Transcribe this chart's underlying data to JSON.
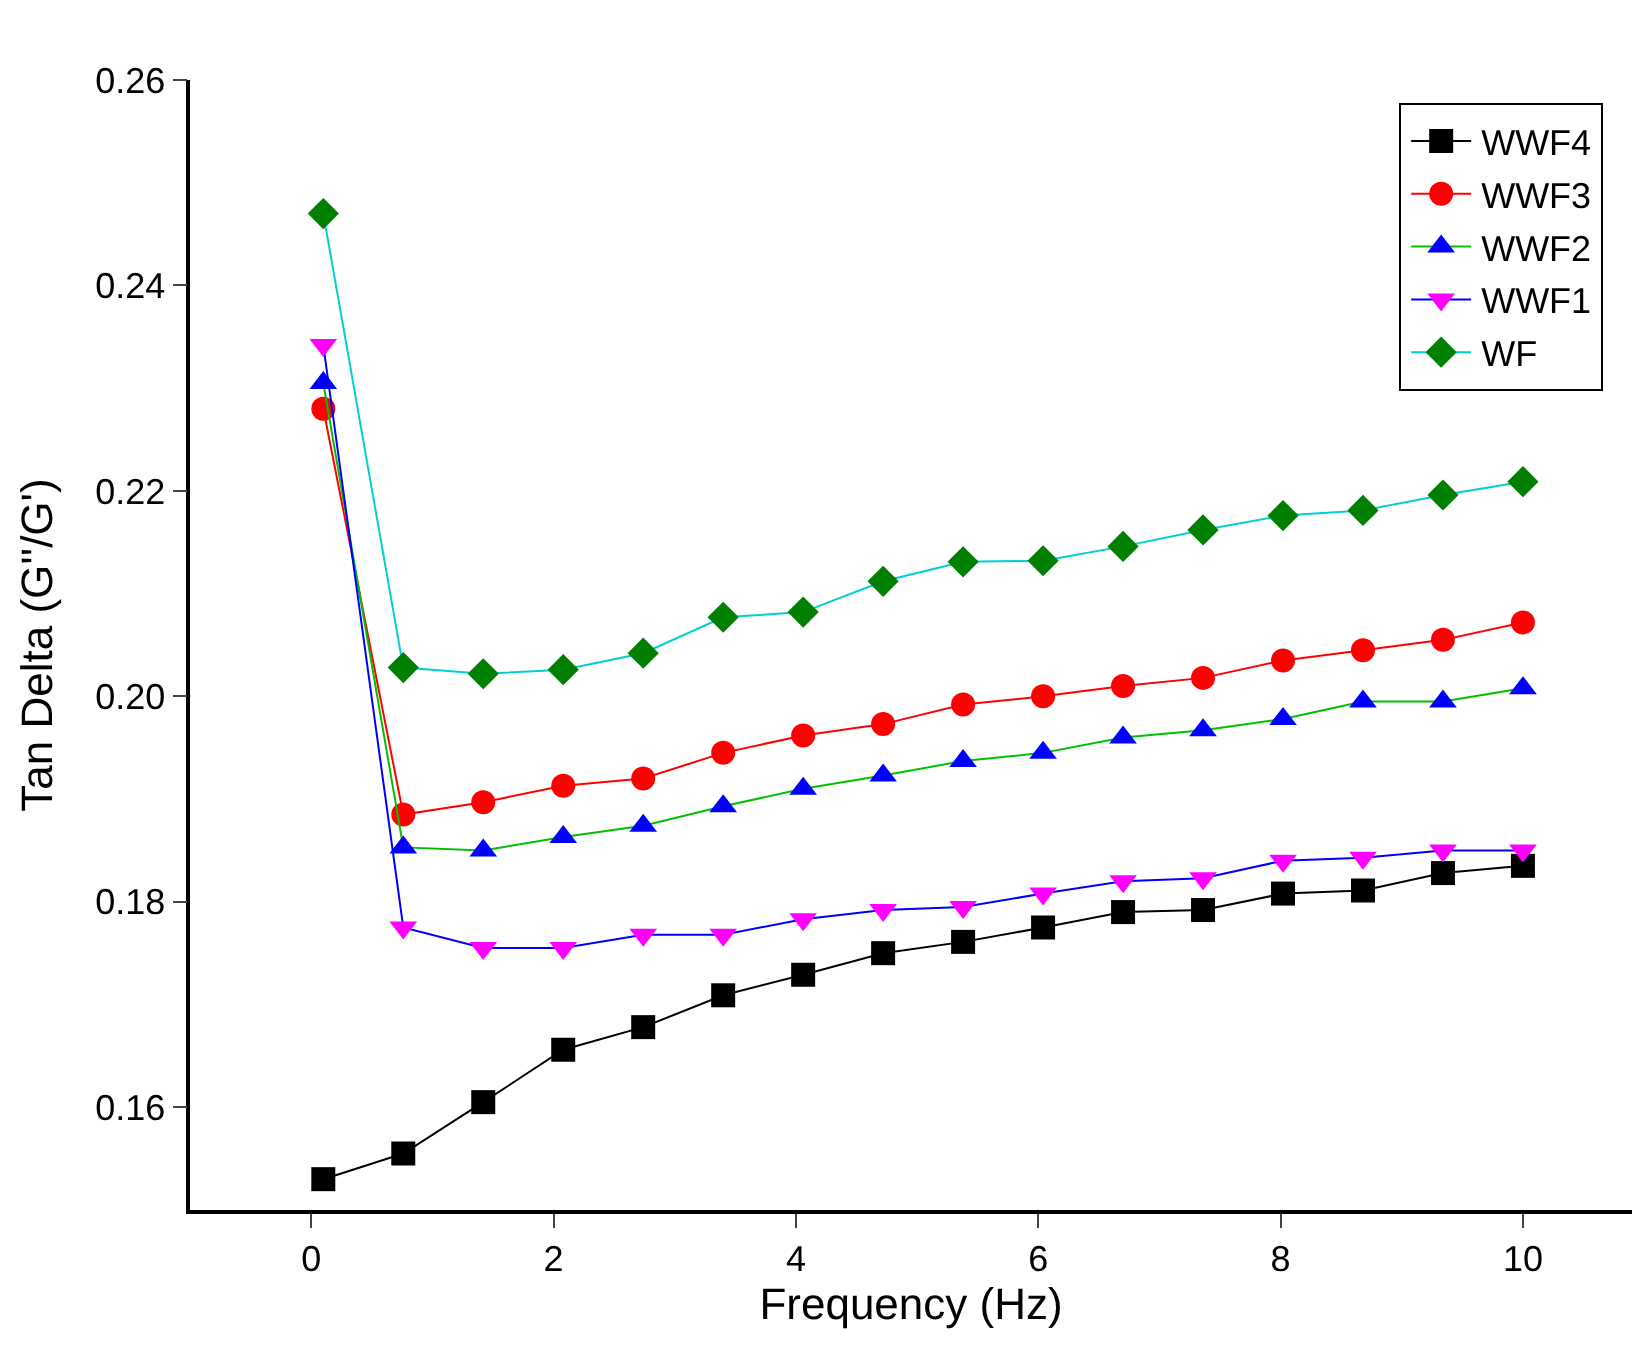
{
  "chart_data": {
    "type": "line",
    "xlabel": "Frequency (Hz)",
    "ylabel": "Tan Delta (G''/G')",
    "x": [
      0.1,
      0.76,
      1.42,
      2.08,
      2.74,
      3.4,
      4.06,
      4.72,
      5.38,
      6.04,
      6.7,
      7.36,
      8.02,
      8.68,
      9.34,
      10
    ],
    "xlim": [
      -1,
      10.9
    ],
    "xticks": [
      0,
      2,
      4,
      6,
      8,
      10
    ],
    "ylim": [
      0.15,
      0.26
    ],
    "yticks": [
      0.16,
      0.18,
      {
        "value": 0.2,
        "label": "0.20"
      },
      0.22,
      0.24,
      0.26
    ],
    "legend": "top right",
    "line_style": "solid",
    "series": [
      {
        "name": "WWF4",
        "color": "#000000",
        "marker": "square",
        "values": [
          0.153,
          0.1555,
          0.1605,
          0.1656,
          0.1678,
          0.1709,
          0.1729,
          0.175,
          0.1761,
          0.1775,
          0.179,
          0.1792,
          0.1808,
          0.1811,
          0.1828,
          0.1835
        ]
      },
      {
        "name": "WWF3",
        "color": "#ff0000",
        "marker": "circle",
        "values": [
          0.228,
          0.1885,
          0.1897,
          0.1913,
          0.192,
          0.1945,
          0.1962,
          0.1973,
          0.1992,
          0.2,
          0.201,
          0.2018,
          0.2035,
          0.2045,
          0.2055,
          0.2072
        ]
      },
      {
        "name": "WWF2",
        "color": "#0000ff",
        "marker": "triangle",
        "values": [
          0.2305,
          0.1853,
          0.185,
          0.1863,
          0.1874,
          0.1893,
          0.191,
          0.1923,
          0.1937,
          0.1945,
          0.196,
          0.1967,
          0.1978,
          0.1995,
          0.1995,
          0.2008
        ]
      },
      {
        "name": "WWF1",
        "color": "#ff00ff",
        "marker": "triangle-down",
        "values": [
          0.2342,
          0.1775,
          0.1755,
          0.1755,
          0.1768,
          0.1768,
          0.1783,
          0.1792,
          0.1795,
          0.1808,
          0.182,
          0.1823,
          0.184,
          0.1843,
          0.185,
          0.185
        ]
      },
      {
        "name": "WF",
        "color": "#008000",
        "marker": "diamond",
        "values": [
          0.247,
          0.2028,
          0.2022,
          0.2026,
          0.2042,
          0.2077,
          0.2082,
          0.2112,
          0.2131,
          0.2132,
          0.2146,
          0.2162,
          0.2176,
          0.2181,
          0.2196,
          0.2209
        ]
      }
    ]
  }
}
